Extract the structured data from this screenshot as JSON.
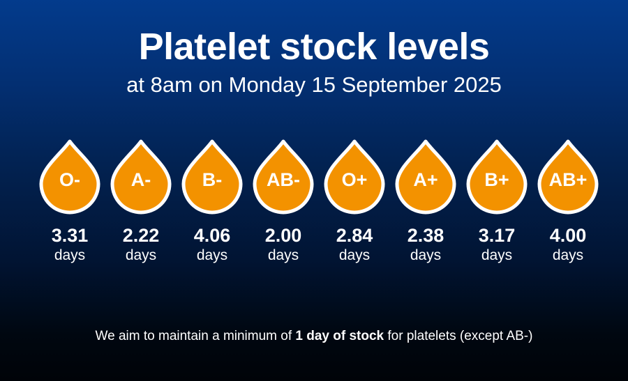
{
  "header": {
    "title": "Platelet stock levels",
    "subtitle": "at 8am on Monday 15 September 2025"
  },
  "colors": {
    "drop_fill": "#f39200",
    "drop_outline": "#ffffff",
    "background_top": "#033b8c",
    "background_bottom": "#000308"
  },
  "stock": [
    {
      "blood_group": "O-",
      "value": "3.31",
      "unit": "days"
    },
    {
      "blood_group": "A-",
      "value": "2.22",
      "unit": "days"
    },
    {
      "blood_group": "B-",
      "value": "4.06",
      "unit": "days"
    },
    {
      "blood_group": "AB-",
      "value": "2.00",
      "unit": "days"
    },
    {
      "blood_group": "O+",
      "value": "2.84",
      "unit": "days"
    },
    {
      "blood_group": "A+",
      "value": "2.38",
      "unit": "days"
    },
    {
      "blood_group": "B+",
      "value": "3.17",
      "unit": "days"
    },
    {
      "blood_group": "AB+",
      "value": "4.00",
      "unit": "days"
    }
  ],
  "footnote": {
    "prefix": "We aim to maintain a minimum of ",
    "emphasis": "1 day of stock",
    "suffix": " for platelets (except AB-)"
  }
}
